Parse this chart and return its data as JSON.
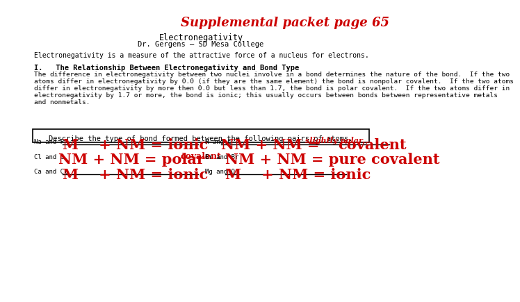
{
  "title": "Supplemental packet page 65",
  "title_color": "#cc0000",
  "title_fontsize": 13,
  "bg_color": "#ffffff",
  "center_title": "Electronegativity",
  "center_subtitle": "Dr. Gergens – SD Mesa College",
  "intro_text": "Electronegativity is a measure of the attractive force of a nucleus for electrons.",
  "section_header": "I.   The Relationship Between Electronegativity and Bond Type",
  "body_lines": [
    "The difference in electronegativity between two nuclei involve in a bond determines the nature of the bond.  If the two",
    "atoms differ in electronegativity by 0.0 (if they are the same element) the bond is nonpolar covalent.  If the two atoms",
    "differ in electronegativity by more then 0.0 but less than 1.7, the bond is polar covalent.  If the two atoms differ in",
    "electronegativity by 1.7 or more, the bond is ionic; this usually occurs between bonds between representative metals",
    "and nonmetals."
  ],
  "table_header": "Describe the type of bond formed between the following pairs of atoms.",
  "row1_left_label": "Na and F",
  "row1_left_answer": "M    + NM = ionic",
  "row1_right_label": "H and C",
  "row1_right_prefix": "NM + NM = ",
  "row1_right_small": "slightly polar",
  "row1_right_end": "covalent",
  "row2_left_label": "Cl and C",
  "row2_left_prefix": "NM + NM = polar",
  "row2_left_small": "covalent",
  "row2_right_label": "Br and Br",
  "row2_right_answer": "NM + NM = pure covalent",
  "row3_left_label": "Ca and Cl",
  "row3_left_answer": "M    + NM = ionic",
  "row3_right_label": "Mg and O",
  "row3_right_answer": "M    + NM = ionic",
  "red": "#cc0000",
  "black": "#000000"
}
